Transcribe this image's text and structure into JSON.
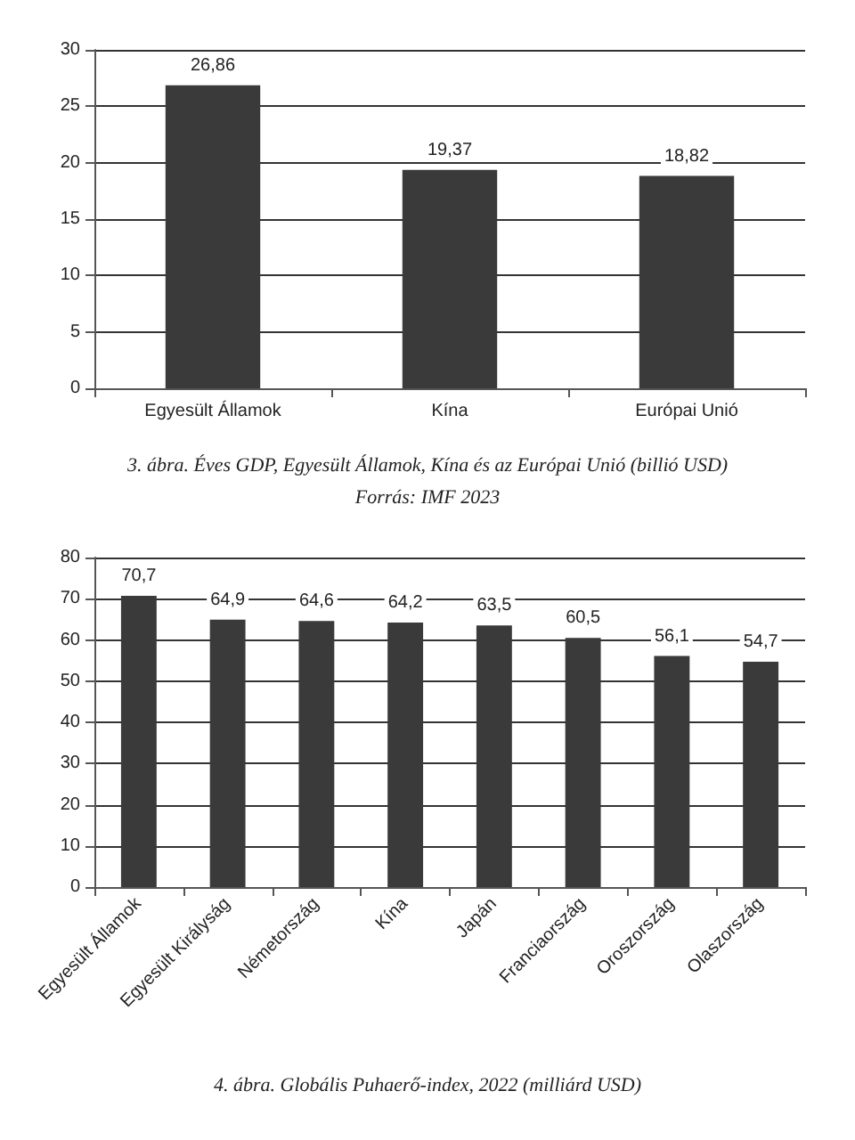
{
  "chart_data": [
    {
      "type": "bar",
      "title": "3. ábra. Éves GDP, Egyesült Államok, Kína és az Európai Unió (billió USD)",
      "annotations": [
        "Forrás: IMF 2023"
      ],
      "categories": [
        "Egyesült Államok",
        "Kína",
        "Európai Unió"
      ],
      "values": [
        26.86,
        19.37,
        18.82
      ],
      "value_labels": [
        "26,86",
        "19,37",
        "18,82"
      ],
      "color": "#3a3a3a",
      "ylim": [
        0,
        30
      ],
      "yticks": [
        0,
        5,
        10,
        15,
        20,
        25,
        30
      ],
      "grid": "y"
    },
    {
      "type": "bar",
      "title": "4. ábra. Globális Puhaerő-index, 2022 (milliárd USD)",
      "categories": [
        "Egyesült Államok",
        "Egyesült Királyság",
        "Németország",
        "Kína",
        "Japán",
        "Franciaország",
        "Oroszország",
        "Olaszország"
      ],
      "values": [
        70.7,
        64.9,
        64.6,
        64.2,
        63.5,
        60.5,
        56.1,
        54.7
      ],
      "value_labels": [
        "70,7",
        "64,9",
        "64,6",
        "64,2",
        "63,5",
        "60,5",
        "56,1",
        "54,7"
      ],
      "color": "#3a3a3a",
      "ylim": [
        0,
        80
      ],
      "yticks": [
        0,
        10,
        20,
        30,
        40,
        50,
        60,
        70,
        80
      ],
      "grid": "y"
    }
  ]
}
